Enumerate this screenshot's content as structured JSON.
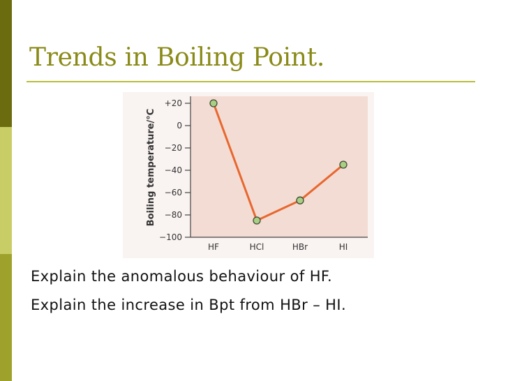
{
  "slide": {
    "title": "Trends in Boiling Point.",
    "bullets": [
      "Explain the anomalous behaviour of HF.",
      "Explain the increase in Bpt from HBr – HI."
    ]
  },
  "colors": {
    "sidebar_dark": "#6b6b10",
    "sidebar_light": "#c9cd66",
    "sidebar_mid": "#9ea22c",
    "title": "#8a8a18",
    "plot_background": "#f3dcd3",
    "line": "#e8672f",
    "marker_fill": "#a9cf84"
  },
  "chart_data": {
    "type": "line",
    "categories": [
      "HF",
      "HCl",
      "HBr",
      "HI"
    ],
    "values": [
      20,
      -85,
      -67,
      -35
    ],
    "ylabel": "Boiling temperature/°C",
    "xlabel": "",
    "ylim": [
      -100,
      20
    ],
    "yticks": [
      20,
      0,
      -20,
      -40,
      -60,
      -80,
      -100
    ],
    "ytick_labels": [
      "+20",
      "0",
      "−20",
      "−40",
      "−60",
      "−80",
      "−100"
    ],
    "grid": false
  }
}
